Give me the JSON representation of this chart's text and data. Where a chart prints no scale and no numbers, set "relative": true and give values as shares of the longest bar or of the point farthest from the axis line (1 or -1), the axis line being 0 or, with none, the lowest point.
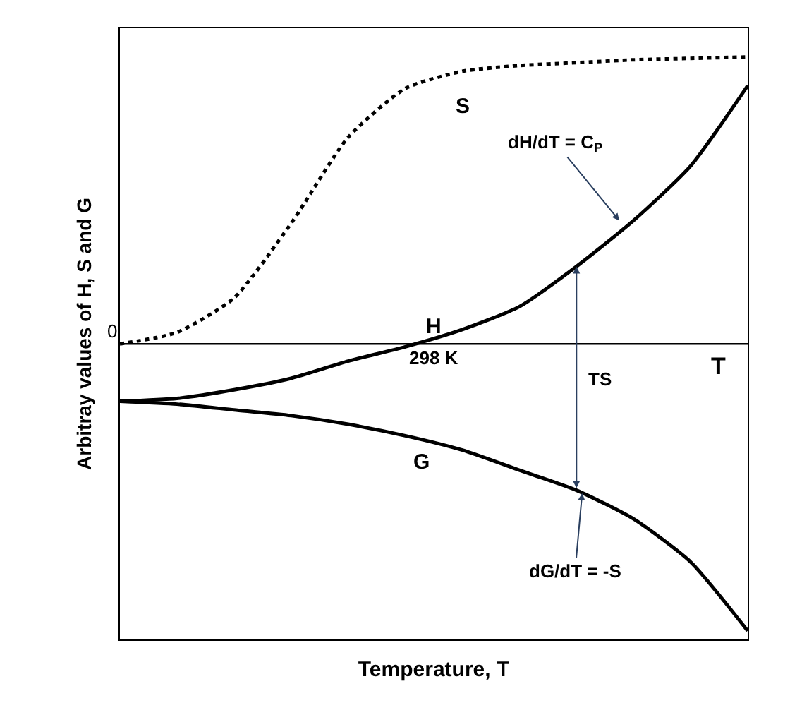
{
  "chart_data": {
    "type": "line",
    "relative": true,
    "xlabel": "Temperature, T",
    "ylabel": "Arbitray values of H, S and G",
    "categories": [
      null,
      null,
      null,
      null,
      null,
      null,
      null,
      null,
      null,
      null,
      null,
      null
    ],
    "series": [
      {
        "name": "S",
        "color": "#000000",
        "line_style": "dotted",
        "values": [
          0,
          0.04,
          0.16,
          0.42,
          0.72,
          0.89,
          0.95,
          0.97,
          0.98,
          0.99,
          0.995,
          1
        ]
      },
      {
        "name": "H",
        "color": "#000000",
        "line_style": "solid",
        "values": [
          -0.2,
          -0.19,
          -0.16,
          -0.12,
          -0.06,
          -0.01,
          0.05,
          0.13,
          0.27,
          0.43,
          0.62,
          0.9
        ]
      },
      {
        "name": "G",
        "color": "#000000",
        "line_style": "solid",
        "values": [
          -0.2,
          -0.21,
          -0.23,
          -0.25,
          -0.28,
          -0.32,
          -0.37,
          -0.44,
          -0.51,
          -0.61,
          -0.76,
          -1.0
        ]
      }
    ],
    "ref_lines": [
      {
        "axis": "y",
        "value": 0,
        "label": "0",
        "color": "#000000"
      }
    ],
    "annotations": [
      "298 K",
      "TS",
      "T",
      "dH/dT = C$_{P}$",
      "dG/dT = -S"
    ],
    "legend": false,
    "marker": "none"
  }
}
